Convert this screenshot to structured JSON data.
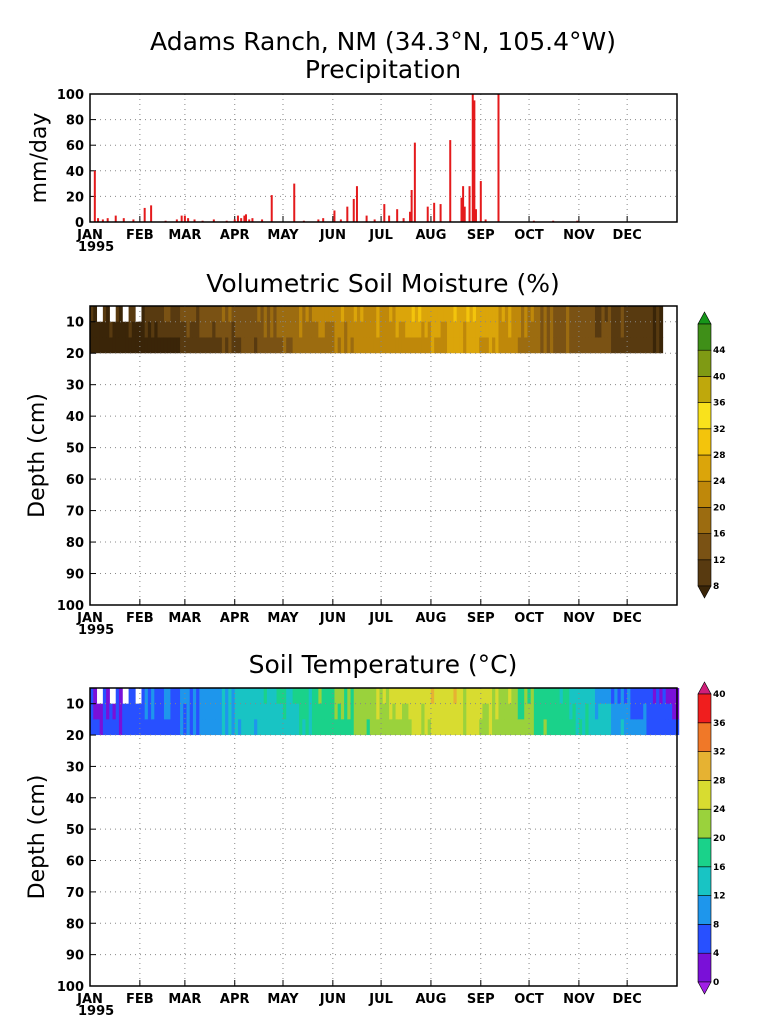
{
  "header": {
    "title": "Adams Ranch, NM (34.3°N, 105.4°W)",
    "subtitle": "Precipitation"
  },
  "chart_data": [
    {
      "type": "bar",
      "name": "precipitation",
      "title": "Precipitation",
      "ylabel": "mm/day",
      "ylim": [
        0,
        100
      ],
      "yticks": [
        "0",
        "20",
        "40",
        "60",
        "80",
        "100"
      ],
      "xticks": [
        "JAN",
        "FEB",
        "MAR",
        "APR",
        "MAY",
        "JUN",
        "JUL",
        "AUG",
        "SEP",
        "OCT",
        "NOV",
        "DEC"
      ],
      "year_label": "1995",
      "grid": true,
      "color": "#e41a1c",
      "bars": [
        {
          "day": 3,
          "value": 40
        },
        {
          "day": 5,
          "value": 3
        },
        {
          "day": 8,
          "value": 2
        },
        {
          "day": 11,
          "value": 3
        },
        {
          "day": 16,
          "value": 5
        },
        {
          "day": 21,
          "value": 3
        },
        {
          "day": 27,
          "value": 2
        },
        {
          "day": 34,
          "value": 11
        },
        {
          "day": 38,
          "value": 13
        },
        {
          "day": 47,
          "value": 1
        },
        {
          "day": 54,
          "value": 2
        },
        {
          "day": 57,
          "value": 5
        },
        {
          "day": 59,
          "value": 5
        },
        {
          "day": 61,
          "value": 3
        },
        {
          "day": 65,
          "value": 2
        },
        {
          "day": 70,
          "value": 1
        },
        {
          "day": 77,
          "value": 2
        },
        {
          "day": 85,
          "value": 1
        },
        {
          "day": 90,
          "value": 2
        },
        {
          "day": 92,
          "value": 5
        },
        {
          "day": 94,
          "value": 3
        },
        {
          "day": 96,
          "value": 5
        },
        {
          "day": 97,
          "value": 6
        },
        {
          "day": 99,
          "value": 2
        },
        {
          "day": 101,
          "value": 3
        },
        {
          "day": 107,
          "value": 2
        },
        {
          "day": 113,
          "value": 21
        },
        {
          "day": 127,
          "value": 30
        },
        {
          "day": 133,
          "value": 1
        },
        {
          "day": 142,
          "value": 2
        },
        {
          "day": 145,
          "value": 3
        },
        {
          "day": 152,
          "value": 9
        },
        {
          "day": 156,
          "value": 2
        },
        {
          "day": 160,
          "value": 12
        },
        {
          "day": 164,
          "value": 18
        },
        {
          "day": 166,
          "value": 28
        },
        {
          "day": 172,
          "value": 5
        },
        {
          "day": 177,
          "value": 2
        },
        {
          "day": 183,
          "value": 14
        },
        {
          "day": 186,
          "value": 5
        },
        {
          "day": 191,
          "value": 10
        },
        {
          "day": 195,
          "value": 3
        },
        {
          "day": 199,
          "value": 8
        },
        {
          "day": 200,
          "value": 25
        },
        {
          "day": 202,
          "value": 62
        },
        {
          "day": 210,
          "value": 12
        },
        {
          "day": 214,
          "value": 15
        },
        {
          "day": 218,
          "value": 14
        },
        {
          "day": 224,
          "value": 64
        },
        {
          "day": 231,
          "value": 19
        },
        {
          "day": 232,
          "value": 28
        },
        {
          "day": 233,
          "value": 12
        },
        {
          "day": 236,
          "value": 28
        },
        {
          "day": 238,
          "value": 100
        },
        {
          "day": 239,
          "value": 95
        },
        {
          "day": 240,
          "value": 10
        },
        {
          "day": 243,
          "value": 32
        },
        {
          "day": 246,
          "value": 2
        },
        {
          "day": 254,
          "value": 100
        },
        {
          "day": 276,
          "value": 1
        },
        {
          "day": 288,
          "value": 1
        },
        {
          "day": 303,
          "value": 1
        }
      ]
    },
    {
      "type": "heatmap",
      "name": "soil-moisture",
      "title": "Volumetric Soil Moisture (%)",
      "ylabel": "Depth (cm)",
      "ylim": [
        100,
        5
      ],
      "yticks": [
        "10",
        "20",
        "30",
        "40",
        "50",
        "60",
        "70",
        "80",
        "90",
        "100"
      ],
      "xticks": [
        "JAN",
        "FEB",
        "MAR",
        "APR",
        "MAY",
        "JUN",
        "JUL",
        "AUG",
        "SEP",
        "OCT",
        "NOV",
        "DEC"
      ],
      "year_label": "1995",
      "data_depth_range": [
        5,
        20
      ],
      "data_day_range": [
        0,
        355
      ],
      "shallow_data_start_day": 33,
      "grid": true,
      "colorbar": {
        "labels": [
          "8",
          "12",
          "16",
          "20",
          "24",
          "28",
          "32",
          "36",
          "40",
          "44"
        ],
        "levels": [
          8,
          12,
          16,
          20,
          24,
          28,
          32,
          36,
          40,
          44
        ],
        "colors": [
          "#3a2508",
          "#583a10",
          "#7a5214",
          "#9c6c10",
          "#bf880a",
          "#dba50a",
          "#f3c40c",
          "#f9e21c",
          "#bfa80c",
          "#7f9a14",
          "#3f8f18",
          "#169619"
        ]
      },
      "profile": [
        {
          "day": 0,
          "shallow": 7,
          "deep": 6
        },
        {
          "day": 30,
          "shallow": 9,
          "deep": 6
        },
        {
          "day": 45,
          "shallow": 11,
          "deep": 7
        },
        {
          "day": 60,
          "shallow": 13,
          "deep": 9
        },
        {
          "day": 80,
          "shallow": 16,
          "deep": 11
        },
        {
          "day": 95,
          "shallow": 13,
          "deep": 12
        },
        {
          "day": 110,
          "shallow": 17,
          "deep": 14
        },
        {
          "day": 130,
          "shallow": 20,
          "deep": 17
        },
        {
          "day": 150,
          "shallow": 22,
          "deep": 19
        },
        {
          "day": 170,
          "shallow": 24,
          "deep": 21
        },
        {
          "day": 185,
          "shallow": 23,
          "deep": 22
        },
        {
          "day": 200,
          "shallow": 28,
          "deep": 23
        },
        {
          "day": 215,
          "shallow": 25,
          "deep": 23
        },
        {
          "day": 230,
          "shallow": 27,
          "deep": 25
        },
        {
          "day": 250,
          "shallow": 26,
          "deep": 24
        },
        {
          "day": 265,
          "shallow": 22,
          "deep": 21
        },
        {
          "day": 280,
          "shallow": 16,
          "deep": 16
        },
        {
          "day": 300,
          "shallow": 15,
          "deep": 15
        },
        {
          "day": 315,
          "shallow": 12,
          "deep": 13
        },
        {
          "day": 335,
          "shallow": 10,
          "deep": 10
        },
        {
          "day": 355,
          "shallow": 8,
          "deep": 8
        }
      ]
    },
    {
      "type": "heatmap",
      "name": "soil-temperature",
      "title": "Soil Temperature (°C)",
      "ylabel": "Depth (cm)",
      "ylim": [
        100,
        5
      ],
      "yticks": [
        "10",
        "20",
        "30",
        "40",
        "50",
        "60",
        "70",
        "80",
        "90",
        "100"
      ],
      "xticks": [
        "JAN",
        "FEB",
        "MAR",
        "APR",
        "MAY",
        "JUN",
        "JUL",
        "AUG",
        "SEP",
        "OCT",
        "NOV",
        "DEC"
      ],
      "year_label": "1995",
      "data_depth_range": [
        5,
        20
      ],
      "data_day_range": [
        0,
        365
      ],
      "shallow_data_start_day": 33,
      "grid": true,
      "colorbar": {
        "labels": [
          "0",
          "4",
          "8",
          "12",
          "16",
          "20",
          "24",
          "28",
          "32",
          "36",
          "40"
        ],
        "levels": [
          0,
          4,
          8,
          12,
          16,
          20,
          24,
          28,
          32,
          36,
          40
        ],
        "colors": [
          "#a01ee6",
          "#7a10d8",
          "#2850ff",
          "#1e96ec",
          "#18c4c4",
          "#1ad28a",
          "#9ad23c",
          "#d8dc30",
          "#e6b232",
          "#f07828",
          "#f01e1e",
          "#d01e7a"
        ]
      },
      "profile": [
        {
          "day": 0,
          "shallow": 3,
          "deep": 4
        },
        {
          "day": 20,
          "shallow": 4,
          "deep": 5
        },
        {
          "day": 35,
          "shallow": 7,
          "deep": 6
        },
        {
          "day": 50,
          "shallow": 8,
          "deep": 7
        },
        {
          "day": 70,
          "shallow": 10,
          "deep": 9
        },
        {
          "day": 90,
          "shallow": 13,
          "deep": 12
        },
        {
          "day": 110,
          "shallow": 15,
          "deep": 13
        },
        {
          "day": 130,
          "shallow": 17,
          "deep": 16
        },
        {
          "day": 150,
          "shallow": 20,
          "deep": 18
        },
        {
          "day": 165,
          "shallow": 22,
          "deep": 20
        },
        {
          "day": 185,
          "shallow": 25,
          "deep": 22
        },
        {
          "day": 200,
          "shallow": 26,
          "deep": 24
        },
        {
          "day": 215,
          "shallow": 27,
          "deep": 25
        },
        {
          "day": 230,
          "shallow": 26,
          "deep": 25
        },
        {
          "day": 245,
          "shallow": 25,
          "deep": 24
        },
        {
          "day": 260,
          "shallow": 22,
          "deep": 22
        },
        {
          "day": 275,
          "shallow": 19,
          "deep": 20
        },
        {
          "day": 290,
          "shallow": 17,
          "deep": 18
        },
        {
          "day": 310,
          "shallow": 13,
          "deep": 15
        },
        {
          "day": 330,
          "shallow": 8,
          "deep": 11
        },
        {
          "day": 350,
          "shallow": 5,
          "deep": 7
        },
        {
          "day": 365,
          "shallow": 3,
          "deep": 5
        }
      ]
    }
  ]
}
